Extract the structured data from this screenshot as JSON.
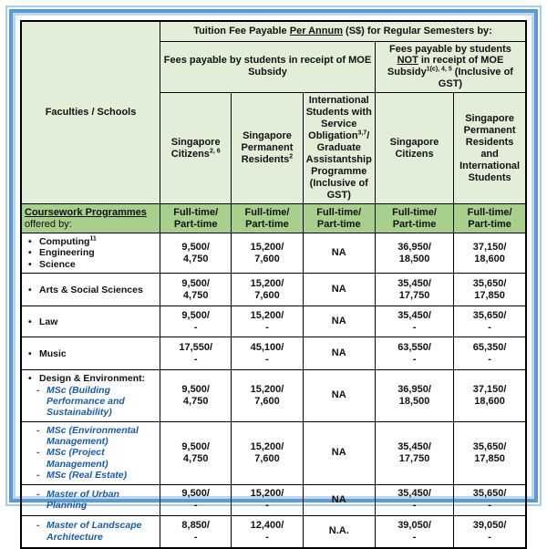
{
  "colors": {
    "frame_blue": "#5b9bd5",
    "frame_light_blue": "#a6cbec",
    "frame_pale_blue": "#bdd7ee",
    "header_light_green": "#e3eed8",
    "band_green": "#a9cf8d",
    "programme_blue": "#1d5ba6",
    "text_black": "#111111"
  },
  "header": {
    "faculties_label": "Faculties / Schools",
    "title_parts": [
      {
        "t": "Tuition Fee Payable "
      },
      {
        "t": "Per Annum",
        "u": true
      },
      {
        "t": " (S$) for Regular Semesters by:"
      }
    ],
    "subsidy_group_parts": [
      {
        "t": "Fees payable by students in receipt of MOE Subsidy"
      }
    ],
    "no_subsidy_group_parts": [
      {
        "t": "Fees payable by students "
      },
      {
        "t": "NOT",
        "u": true
      },
      {
        "t": " in receipt of MOE Subsidy"
      },
      {
        "t": "1(c), 4, 5",
        "sup": true
      },
      {
        "t": " (Inclusive of GST)"
      }
    ],
    "columns": [
      [
        {
          "t": "Singapore Citizens"
        },
        {
          "t": "2, 6",
          "sup": true
        }
      ],
      [
        {
          "t": "Singapore Permanent Residents"
        },
        {
          "t": "2",
          "sup": true
        }
      ],
      [
        {
          "t": "International Students with Service Obligation"
        },
        {
          "t": "3,7",
          "sup": true
        },
        {
          "t": "/ Graduate Assistantship Programme (Inclusive of GST)"
        }
      ],
      [
        {
          "t": "Singapore Citizens"
        }
      ],
      [
        {
          "t": "Singapore Permanent Residents and International Students"
        }
      ]
    ],
    "coursework_parts": [
      {
        "t": "Coursework Programmes",
        "u": true
      },
      {
        "t": "offered by:",
        "br": true,
        "plain": true
      }
    ],
    "schedule_label": "Full-time/\nPart-time"
  },
  "rows": [
    {
      "faculty": [
        {
          "t": "Computing",
          "sup": "11",
          "m": "bullet"
        },
        {
          "t": "Engineering",
          "m": "bullet"
        },
        {
          "t": "Science",
          "m": "bullet"
        }
      ],
      "fees": [
        "9,500/\n4,750",
        "15,200/\n7,600",
        "NA",
        "36,950/\n18,500",
        "37,150/\n18,600"
      ]
    },
    {
      "faculty": [
        {
          "t": "Arts & Social Sciences",
          "m": "bullet"
        }
      ],
      "fees": [
        "9,500/\n4,750",
        "15,200/\n7,600",
        "NA",
        "35,450/\n17,750",
        "35,650/\n17,850"
      ]
    },
    {
      "faculty": [
        {
          "t": "Law",
          "m": "bullet"
        }
      ],
      "fees": [
        "9,500/\n-",
        "15,200/\n-",
        "NA",
        "35,450/\n-",
        "35,650/\n-"
      ]
    },
    {
      "faculty": [
        {
          "t": "Music",
          "m": "bullet"
        }
      ],
      "fees": [
        "17,550/\n-",
        "45,100/\n-",
        "NA",
        "63,550/\n-",
        "65,350/\n-"
      ]
    },
    {
      "faculty": [
        {
          "t": "Design & Environment:",
          "m": "bullet"
        },
        {
          "t": "MSc (Building Performance and Sustainability)",
          "m": "dash",
          "blue": true
        }
      ],
      "fees": [
        "9,500/\n4,750",
        "15,200/\n7,600",
        "NA",
        "36,950/\n18,500",
        "37,150/\n18,600"
      ]
    },
    {
      "faculty": [
        {
          "t": "MSc (Environmental Management)",
          "m": "dash",
          "blue": true
        },
        {
          "t": "MSc (Project Management)",
          "m": "dash",
          "blue": true
        },
        {
          "t": "MSc (Real Estate)",
          "m": "dash",
          "blue": true
        }
      ],
      "fees": [
        "9,500/\n4,750",
        "15,200/\n7,600",
        "NA",
        "35,450/\n17,750",
        "35,650/\n17,850"
      ]
    },
    {
      "faculty": [
        {
          "t": "Master of Urban Planning",
          "m": "dash",
          "blue": true
        }
      ],
      "fees": [
        "9,500/\n-",
        "15,200/\n-",
        "NA",
        "35,450/\n-",
        "35,650/\n-"
      ]
    },
    {
      "faculty": [
        {
          "t": "Master of Landscape Architecture",
          "m": "dash",
          "blue": true
        }
      ],
      "fees": [
        "8,850/\n-",
        "12,400/\n-",
        "N.A.",
        "39,050/\n-",
        "39,050/\n-"
      ]
    }
  ]
}
